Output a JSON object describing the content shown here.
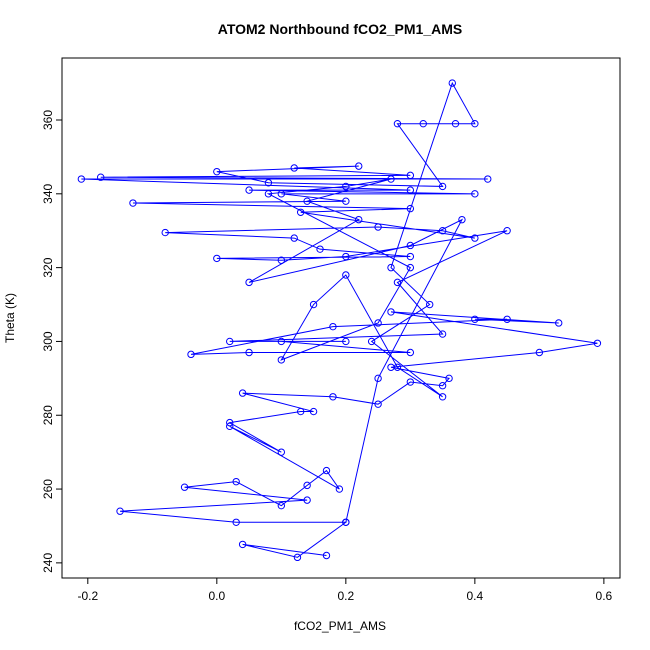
{
  "chart_data": {
    "type": "scatter",
    "title": "ATOM2 Northbound fCO2_PM1_AMS",
    "x_label": "fCO2_PM1_AMS",
    "y_label": "Theta (K)",
    "color": "#0000ff",
    "connected": true,
    "x": [
      0.17,
      0.04,
      0.125,
      0.2,
      0.03,
      -0.15,
      0.14,
      -0.05,
      0.03,
      0.1,
      0.14,
      0.17,
      0.19,
      0.02,
      0.1,
      0.02,
      0.13,
      0.15,
      0.04,
      0.18,
      0.25,
      0.3,
      0.35,
      0.36,
      0.27,
      0.5,
      0.59,
      0.27,
      0.53,
      0.4,
      0.45,
      0.18,
      -0.04,
      0.05,
      0.3,
      0.1,
      0.2,
      0.02,
      0.35,
      0.28,
      0.45,
      0.2,
      0.1,
      0.0,
      0.3,
      0.16,
      0.12,
      -0.08,
      0.25,
      0.35,
      0.4,
      0.13,
      0.3,
      -0.13,
      0.2,
      0.1,
      0.4,
      0.05,
      0.3,
      -0.21,
      0.42,
      -0.18,
      0.3,
      0.12,
      0.22,
      0.0,
      0.08,
      0.35,
      0.28,
      0.32,
      0.37,
      0.4,
      0.365,
      0.27,
      0.33,
      0.24,
      0.35,
      0.28,
      0.2,
      0.15,
      0.1,
      0.25,
      0.3,
      0.08,
      0.2,
      0.27,
      0.14,
      0.22,
      0.05,
      0.3,
      0.38,
      0.25,
      0.2
    ],
    "values": [
      242,
      245,
      241.5,
      251,
      251,
      254,
      257,
      260.5,
      262,
      255.5,
      261,
      265,
      260,
      277,
      270,
      278,
      281,
      281,
      286,
      285,
      283,
      289,
      288,
      290,
      293,
      297,
      299.5,
      308,
      305,
      306,
      306,
      304,
      296.5,
      297,
      297,
      300,
      300,
      300,
      302,
      316,
      330,
      323,
      322,
      322.5,
      323,
      325,
      328,
      329.5,
      331,
      330,
      328,
      335,
      336,
      337.5,
      338,
      340,
      340,
      341,
      341,
      344,
      344,
      344.5,
      345,
      347,
      347.5,
      346,
      343,
      342,
      359,
      359,
      359,
      359,
      370,
      320,
      310,
      300,
      285,
      293,
      318,
      310,
      295,
      305,
      320,
      340,
      342,
      344,
      338,
      333,
      316,
      326,
      333,
      290,
      251
    ],
    "xlim": [
      -0.24,
      0.625
    ],
    "ylim": [
      235.9,
      376.8
    ],
    "xticks": [
      -0.2,
      {
        "value": 0,
        "label": "0.0"
      },
      0.2,
      0.4,
      0.6
    ],
    "yticks": [
      240,
      260,
      280,
      300,
      320,
      340,
      360
    ]
  }
}
